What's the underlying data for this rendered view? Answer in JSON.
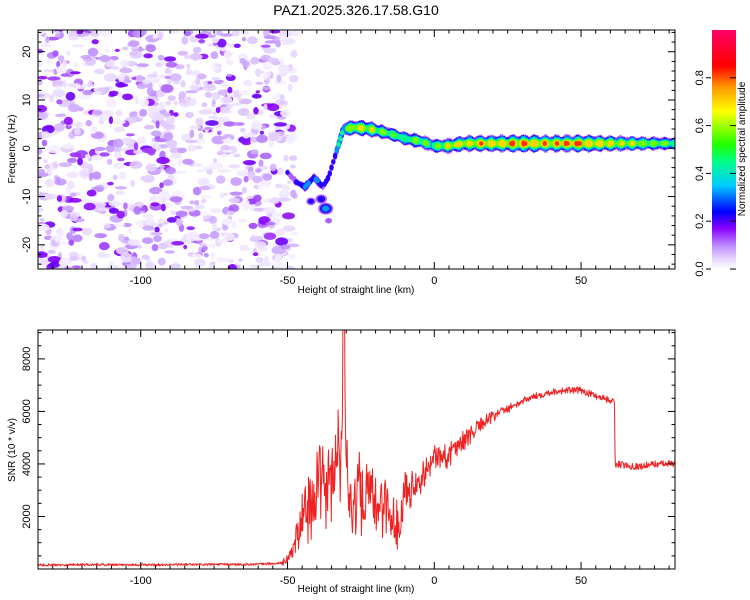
{
  "title": "PAZ1.2025.326.17.58.G10",
  "chart_data": [
    {
      "type": "heatmap",
      "name": "spectrogram",
      "xlabel": "Height of straight line (km)",
      "ylabel": "Frequency (Hz)",
      "xlim": [
        -135,
        82
      ],
      "ylim": [
        -25,
        24.5
      ],
      "xticks": [
        -100,
        -50,
        0,
        50
      ],
      "yticks": [
        -20,
        -10,
        0,
        10,
        20
      ],
      "colorbar": {
        "label": "Normalized spectral amplitude",
        "range": [
          0.0,
          1.0
        ],
        "ticks": [
          0.0,
          0.2,
          0.4,
          0.6,
          0.8
        ],
        "tick_labels": [
          "0.0",
          "0.2",
          "0.4",
          "0.6",
          "0.8"
        ],
        "colormap": [
          "#ffffff",
          "#cc99ff",
          "#7700ff",
          "#0000ff",
          "#00ffff",
          "#00ff00",
          "#ffff00",
          "#ff7700",
          "#ff0000",
          "#ff0066"
        ]
      },
      "noise_region": {
        "x_range": [
          -135,
          -50
        ],
        "y_range": [
          -25,
          24.5
        ],
        "amplitude": [
          0.05,
          0.18
        ]
      },
      "ridge": [
        {
          "x": -50,
          "y": -5,
          "amp": 0.2
        },
        {
          "x": -47,
          "y": -7,
          "amp": 0.25
        },
        {
          "x": -44,
          "y": -8,
          "amp": 0.35
        },
        {
          "x": -41,
          "y": -6,
          "amp": 0.35
        },
        {
          "x": -38,
          "y": -8,
          "amp": 0.3
        },
        {
          "x": -36,
          "y": -6,
          "amp": 0.25
        },
        {
          "x": -33,
          "y": 0,
          "amp": 0.4
        },
        {
          "x": -31,
          "y": 4,
          "amp": 0.6
        },
        {
          "x": -27,
          "y": 4.3,
          "amp": 0.75
        },
        {
          "x": -23,
          "y": 4.1,
          "amp": 0.75
        },
        {
          "x": -19,
          "y": 3.6,
          "amp": 0.65
        },
        {
          "x": -15,
          "y": 3,
          "amp": 0.6
        },
        {
          "x": -10,
          "y": 2,
          "amp": 0.6
        },
        {
          "x": -5,
          "y": 1.5,
          "amp": 0.65
        },
        {
          "x": 0,
          "y": 0.5,
          "amp": 0.6
        },
        {
          "x": 5,
          "y": 0.5,
          "amp": 0.7
        },
        {
          "x": 10,
          "y": 1,
          "amp": 0.75
        },
        {
          "x": 20,
          "y": 1,
          "amp": 0.8
        },
        {
          "x": 30,
          "y": 1,
          "amp": 0.85
        },
        {
          "x": 40,
          "y": 1,
          "amp": 0.8
        },
        {
          "x": 50,
          "y": 1,
          "amp": 0.85
        },
        {
          "x": 60,
          "y": 1,
          "amp": 0.75
        },
        {
          "x": 70,
          "y": 1,
          "amp": 0.65
        },
        {
          "x": 82,
          "y": 1,
          "amp": 0.55
        }
      ],
      "side_blobs": [
        {
          "x": -37,
          "y": -12.5,
          "amp": 0.35
        },
        {
          "x": -38.5,
          "y": -10.5,
          "amp": 0.25
        },
        {
          "x": -42,
          "y": -11,
          "amp": 0.2
        },
        {
          "x": -36,
          "y": -15,
          "amp": 0.12
        }
      ]
    },
    {
      "type": "line",
      "name": "snr",
      "xlabel": "Height of straight line (km)",
      "ylabel": "SNR (10 * v/v)",
      "xlim": [
        -135,
        82
      ],
      "ylim": [
        0,
        9100
      ],
      "xticks": [
        -100,
        -50,
        0,
        50
      ],
      "yticks": [
        2000,
        4000,
        6000,
        8000
      ],
      "color": "#ee2222",
      "series": [
        {
          "name": "SNR",
          "x": [
            -135,
            -120,
            -100,
            -80,
            -60,
            -52,
            -50,
            -48,
            -46,
            -44,
            -42,
            -40,
            -38,
            -36,
            -34,
            -32,
            -31,
            -30,
            -28,
            -26,
            -24,
            -22,
            -20,
            -18,
            -15,
            -12,
            -10,
            -8,
            -6,
            -4,
            -2,
            0,
            4,
            8,
            12,
            16,
            20,
            25,
            30,
            35,
            40,
            45,
            50,
            55,
            58,
            61.4,
            61.6,
            65,
            70,
            75,
            82
          ],
          "y": [
            150,
            170,
            160,
            170,
            180,
            220,
            350,
            800,
            1500,
            2200,
            2600,
            2900,
            3000,
            3200,
            3500,
            5000,
            9000,
            4500,
            2200,
            3200,
            2500,
            2900,
            2300,
            2700,
            2000,
            1600,
            3200,
            3000,
            3500,
            3600,
            3800,
            4200,
            4300,
            4700,
            5100,
            5500,
            5800,
            6100,
            6400,
            6600,
            6750,
            6800,
            6800,
            6600,
            6500,
            6350,
            4000,
            3950,
            3900,
            4000,
            4000
          ]
        }
      ]
    }
  ]
}
